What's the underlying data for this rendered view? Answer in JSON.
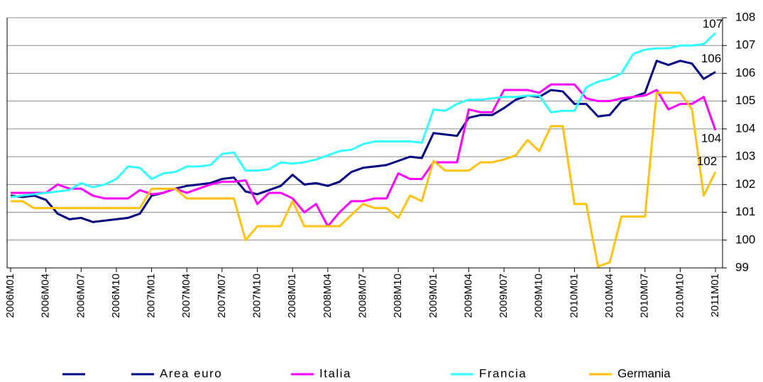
{
  "chart_data": {
    "type": "line",
    "categories": [
      "2006M01",
      null,
      null,
      "2006M04",
      null,
      null,
      "2006M07",
      null,
      null,
      "2006M10",
      null,
      null,
      "2007M01",
      null,
      null,
      "2007M04",
      null,
      null,
      "2007M07",
      null,
      null,
      "2007M10",
      null,
      null,
      "2008M01",
      null,
      null,
      "2008M04",
      null,
      null,
      "2008M07",
      null,
      null,
      "2008M10",
      null,
      null,
      "2009M01",
      null,
      null,
      "2009M04",
      null,
      null,
      "2009M07",
      null,
      null,
      "2009M10",
      null,
      null,
      "2010M01",
      null,
      null,
      "2010M04",
      null,
      null,
      "2010M07",
      null,
      null,
      "2010M10",
      null,
      null,
      "2011M01"
    ],
    "series": [
      {
        "name": "Area euro",
        "color": "#000080",
        "end_label": "106",
        "values": [
          101.6,
          101.55,
          101.6,
          101.45,
          100.95,
          100.75,
          100.8,
          100.65,
          100.7,
          100.75,
          100.8,
          100.95,
          101.6,
          101.7,
          101.85,
          101.95,
          102.0,
          102.05,
          102.2,
          102.25,
          101.75,
          101.65,
          101.8,
          101.95,
          102.35,
          102.0,
          102.05,
          101.95,
          102.1,
          102.45,
          102.6,
          102.65,
          102.7,
          102.85,
          103.0,
          102.95,
          103.85,
          103.8,
          103.75,
          104.4,
          104.5,
          104.5,
          104.75,
          105.05,
          105.2,
          105.15,
          105.4,
          105.35,
          104.9,
          104.9,
          104.45,
          104.5,
          105.0,
          105.15,
          105.3,
          106.45,
          106.3,
          106.45,
          106.35,
          105.8,
          106.05
        ]
      },
      {
        "name": "Italia",
        "color": "#ff00ff",
        "end_label": "104",
        "values": [
          101.7,
          101.7,
          101.7,
          101.7,
          102.0,
          101.85,
          101.85,
          101.6,
          101.5,
          101.5,
          101.5,
          101.8,
          101.65,
          101.7,
          101.85,
          101.7,
          101.85,
          102.0,
          102.1,
          102.1,
          102.15,
          101.3,
          101.7,
          101.7,
          101.5,
          101.0,
          101.3,
          100.5,
          101.0,
          101.4,
          101.4,
          101.5,
          101.5,
          102.4,
          102.2,
          102.2,
          102.8,
          102.8,
          102.8,
          104.7,
          104.6,
          104.6,
          105.4,
          105.4,
          105.4,
          105.3,
          105.6,
          105.6,
          105.6,
          105.1,
          105.0,
          105.0,
          105.1,
          105.15,
          105.2,
          105.4,
          104.7,
          104.9,
          104.9,
          105.15,
          103.95
        ]
      },
      {
        "name": "Francia",
        "color": "#33ffff",
        "end_label": "107",
        "values": [
          101.55,
          101.6,
          101.65,
          101.7,
          101.75,
          101.8,
          102.05,
          101.9,
          102.0,
          102.2,
          102.65,
          102.6,
          102.2,
          102.4,
          102.45,
          102.65,
          102.65,
          102.7,
          103.1,
          103.15,
          102.5,
          102.5,
          102.55,
          102.8,
          102.75,
          102.8,
          102.9,
          103.05,
          103.2,
          103.25,
          103.45,
          103.55,
          103.55,
          103.55,
          103.55,
          103.5,
          104.7,
          104.65,
          104.9,
          105.05,
          105.05,
          105.1,
          105.15,
          105.15,
          105.2,
          105.2,
          104.6,
          104.65,
          104.65,
          105.5,
          105.7,
          105.8,
          106.0,
          106.7,
          106.85,
          106.9,
          106.9,
          107.0,
          107.0,
          107.05,
          107.45
        ]
      },
      {
        "name": "Germania",
        "color": "#ffc20e",
        "end_label": "102",
        "values": [
          101.4,
          101.4,
          101.15,
          101.15,
          101.15,
          101.15,
          101.15,
          101.15,
          101.15,
          101.15,
          101.15,
          101.15,
          101.85,
          101.85,
          101.85,
          101.5,
          101.5,
          101.5,
          101.5,
          101.5,
          100.0,
          100.5,
          100.5,
          100.5,
          101.4,
          100.5,
          100.5,
          100.5,
          100.5,
          100.9,
          101.3,
          101.15,
          101.15,
          100.8,
          101.6,
          101.4,
          102.85,
          102.5,
          102.5,
          102.5,
          102.8,
          102.8,
          102.9,
          103.05,
          103.6,
          103.2,
          104.1,
          104.1,
          101.3,
          101.3,
          99.05,
          99.2,
          100.85,
          100.85,
          100.85,
          105.3,
          105.3,
          105.3,
          104.7,
          101.6,
          102.45
        ]
      }
    ],
    "ylim": [
      99,
      108
    ],
    "yticks": [
      99,
      100,
      101,
      102,
      103,
      104,
      105,
      106,
      107,
      108
    ],
    "grid": true
  }
}
